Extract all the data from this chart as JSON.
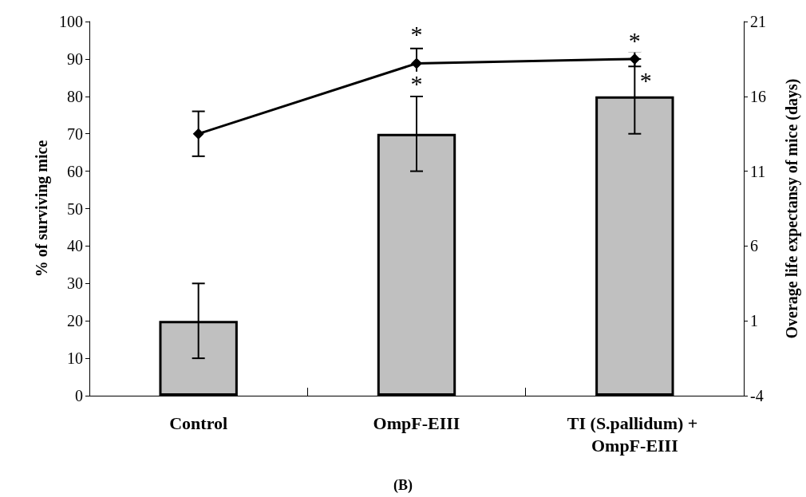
{
  "chart_data": {
    "type": "bar",
    "categories": [
      "Control",
      "OmpF-EIII",
      "TI (S.pallidum) + OmpF-EIII"
    ],
    "ylabel": "% of surviving mice",
    "y2label": "Overage life expectansy of mice (days)",
    "series": [
      {
        "color": "#c0c0c0",
        "values": [
          20,
          70,
          80
        ],
        "errors": [
          10,
          10,
          10
        ]
      },
      {
        "type": "line",
        "axis": "y2",
        "color": "#000000",
        "values": [
          13.5,
          18.2,
          18.5
        ],
        "errors": [
          1.5,
          1.0,
          0.5
        ],
        "marker": "diamond",
        "line_style": "solid"
      }
    ],
    "ylim": [
      0,
      100
    ],
    "yticks": [
      0,
      10,
      20,
      30,
      40,
      50,
      60,
      70,
      80,
      90,
      100
    ],
    "y2lim": [
      -4,
      21
    ],
    "y2ticks": [
      -4,
      1,
      6,
      11,
      16,
      21
    ],
    "grid": false,
    "annotations": [
      "*",
      "*",
      "*",
      "*",
      "(B)"
    ]
  }
}
